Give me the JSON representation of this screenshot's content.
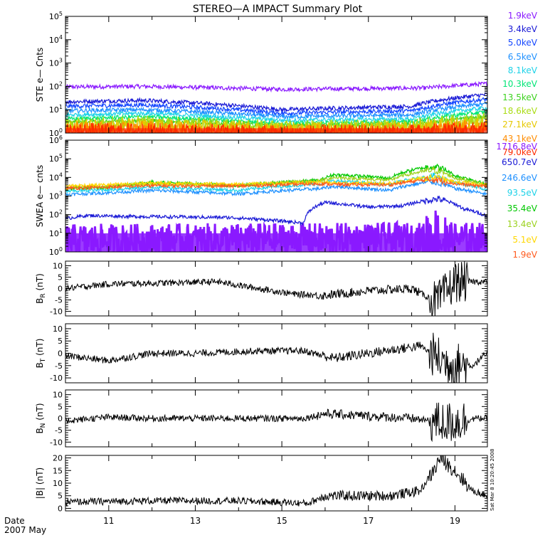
{
  "title": "STEREO—A IMPACT Summary Plot",
  "footer": {
    "date_label": "Date",
    "date_value": "2007 May"
  },
  "side_note": "Sat Mar  8 10:20:45 2008",
  "x_axis": {
    "range": [
      10,
      19.75
    ],
    "ticks": [
      "11",
      "13",
      "15",
      "17",
      "19"
    ],
    "tick_values": [
      11,
      13,
      15,
      17,
      19
    ]
  },
  "chart_data": [
    {
      "id": "ste",
      "type": "line",
      "ylabel": "STE e— Cnts",
      "yscale": "log",
      "ylim": [
        1,
        100000
      ],
      "yticks_exp": [
        "0",
        "1",
        "2",
        "3",
        "4",
        "5"
      ],
      "series": [
        {
          "name": "1.9keV",
          "color": "#8a1aff",
          "levels": [
            {
              "x": 10,
              "y": 95
            },
            {
              "x": 11.8,
              "y": 100
            },
            {
              "x": 15,
              "y": 75
            },
            {
              "x": 18.3,
              "y": 85
            },
            {
              "x": 19.75,
              "y": 130
            }
          ]
        },
        {
          "name": "3.4keV",
          "color": "#1a1ad6",
          "levels": [
            {
              "x": 10,
              "y": 22
            },
            {
              "x": 11.8,
              "y": 25
            },
            {
              "x": 15,
              "y": 10
            },
            {
              "x": 18,
              "y": 14
            },
            {
              "x": 19.75,
              "y": 45
            }
          ]
        },
        {
          "name": "5.0keV",
          "color": "#1447ff",
          "levels": [
            {
              "x": 10,
              "y": 14
            },
            {
              "x": 11.8,
              "y": 16
            },
            {
              "x": 15,
              "y": 7
            },
            {
              "x": 18,
              "y": 9
            },
            {
              "x": 19.75,
              "y": 28
            }
          ]
        },
        {
          "name": "6.5keV",
          "color": "#1e90ff",
          "levels": [
            {
              "x": 10,
              "y": 9
            },
            {
              "x": 11.8,
              "y": 10
            },
            {
              "x": 15,
              "y": 5
            },
            {
              "x": 18,
              "y": 6
            },
            {
              "x": 19.75,
              "y": 18
            }
          ]
        },
        {
          "name": "8.1keV",
          "color": "#1ed2e8",
          "levels": [
            {
              "x": 10,
              "y": 6
            },
            {
              "x": 11.8,
              "y": 7
            },
            {
              "x": 15,
              "y": 3.5
            },
            {
              "x": 18,
              "y": 4
            },
            {
              "x": 19.75,
              "y": 12
            }
          ]
        },
        {
          "name": "10.3keV",
          "color": "#00e676",
          "levels": [
            {
              "x": 10,
              "y": 4
            },
            {
              "x": 11.8,
              "y": 5
            },
            {
              "x": 15,
              "y": 2.5
            },
            {
              "x": 18,
              "y": 3
            },
            {
              "x": 19.75,
              "y": 8
            }
          ]
        },
        {
          "name": "13.5keV",
          "color": "#3cd21e",
          "levels": [
            {
              "x": 10,
              "y": 3
            },
            {
              "x": 11.8,
              "y": 3.5
            },
            {
              "x": 15,
              "y": 2
            },
            {
              "x": 18,
              "y": 2.3
            },
            {
              "x": 19.75,
              "y": 5
            }
          ]
        },
        {
          "name": "18.6keV",
          "color": "#aadc14",
          "levels": [
            {
              "x": 10,
              "y": 2.2
            },
            {
              "x": 11.8,
              "y": 2.5
            },
            {
              "x": 15,
              "y": 1.6
            },
            {
              "x": 18,
              "y": 1.8
            },
            {
              "x": 19.75,
              "y": 3.5
            }
          ]
        },
        {
          "name": "27.1keV",
          "color": "#e6c800",
          "levels": [
            {
              "x": 10,
              "y": 1.7
            },
            {
              "x": 11.8,
              "y": 2
            },
            {
              "x": 15,
              "y": 1.3
            },
            {
              "x": 18,
              "y": 1.5
            },
            {
              "x": 19.75,
              "y": 2.5
            }
          ]
        },
        {
          "name": "43.1keV",
          "color": "#ff8c00",
          "levels": [
            {
              "x": 10,
              "y": 1.4
            },
            {
              "x": 11.8,
              "y": 1.5
            },
            {
              "x": 15,
              "y": 1.1
            },
            {
              "x": 18,
              "y": 1.2
            },
            {
              "x": 19.75,
              "y": 1.8
            }
          ]
        },
        {
          "name": "79.0keV",
          "color": "#ff2a00",
          "levels": [
            {
              "x": 10,
              "y": 1.2
            },
            {
              "x": 11.8,
              "y": 1.25
            },
            {
              "x": 15,
              "y": 1.0
            },
            {
              "x": 18,
              "y": 1.05
            },
            {
              "x": 19.75,
              "y": 1.4
            }
          ]
        }
      ]
    },
    {
      "id": "swea",
      "type": "line",
      "ylabel": "SWEA e— cnts",
      "yscale": "log",
      "ylim": [
        1,
        1000000
      ],
      "yticks_exp": [
        "0",
        "1",
        "2",
        "3",
        "4",
        "5",
        "6"
      ],
      "series": [
        {
          "name": "1716.8eV",
          "color": "#8a1aff",
          "levels": [
            {
              "x": 10,
              "y": 4
            },
            {
              "x": 19.75,
              "y": 5
            }
          ]
        },
        {
          "name": "650.7eV",
          "color": "#1a1ad6",
          "levels": [
            {
              "x": 10,
              "y": 60
            },
            {
              "x": 10.5,
              "y": 90
            },
            {
              "x": 11.5,
              "y": 80
            },
            {
              "x": 13.8,
              "y": 70
            },
            {
              "x": 15.5,
              "y": 35
            },
            {
              "x": 16,
              "y": 450
            },
            {
              "x": 17,
              "y": 250
            },
            {
              "x": 17.8,
              "y": 300
            },
            {
              "x": 18.6,
              "y": 700
            },
            {
              "x": 19.2,
              "y": 200
            },
            {
              "x": 19.75,
              "y": 80
            }
          ]
        },
        {
          "name": "246.6eV",
          "color": "#1e90ff",
          "levels": [
            {
              "x": 10,
              "y": 1200
            },
            {
              "x": 11,
              "y": 1500
            },
            {
              "x": 12,
              "y": 2000
            },
            {
              "x": 14,
              "y": 1300
            },
            {
              "x": 15.9,
              "y": 2500
            },
            {
              "x": 16.2,
              "y": 3200
            },
            {
              "x": 17.5,
              "y": 2000
            },
            {
              "x": 18.5,
              "y": 6000
            },
            {
              "x": 19,
              "y": 2500
            },
            {
              "x": 19.75,
              "y": 1200
            }
          ]
        },
        {
          "name": "93.5eV",
          "color": "#1ed2e8",
          "levels": [
            {
              "x": 10,
              "y": 1800
            },
            {
              "x": 11,
              "y": 2200
            },
            {
              "x": 12,
              "y": 3000
            },
            {
              "x": 14,
              "y": 2000
            },
            {
              "x": 15.9,
              "y": 4500
            },
            {
              "x": 16.2,
              "y": 6500
            },
            {
              "x": 17.5,
              "y": 4000
            },
            {
              "x": 18.5,
              "y": 12000
            },
            {
              "x": 19,
              "y": 5000
            },
            {
              "x": 19.75,
              "y": 2000
            }
          ]
        },
        {
          "name": "35.4eV",
          "color": "#00c800",
          "levels": [
            {
              "x": 10,
              "y": 2500
            },
            {
              "x": 11,
              "y": 3000
            },
            {
              "x": 12,
              "y": 5500
            },
            {
              "x": 14,
              "y": 3500
            },
            {
              "x": 15.9,
              "y": 7000
            },
            {
              "x": 16.2,
              "y": 14000
            },
            {
              "x": 17.5,
              "y": 9000
            },
            {
              "x": 18.5,
              "y": 40000
            },
            {
              "x": 19,
              "y": 12000
            },
            {
              "x": 19.75,
              "y": 3500
            }
          ]
        },
        {
          "name": "13.4eV",
          "color": "#9bd21e",
          "levels": [
            {
              "x": 10,
              "y": 2800
            },
            {
              "x": 11,
              "y": 3200
            },
            {
              "x": 12,
              "y": 4500
            },
            {
              "x": 14,
              "y": 3800
            },
            {
              "x": 15.9,
              "y": 6500
            },
            {
              "x": 16.2,
              "y": 10000
            },
            {
              "x": 17.5,
              "y": 7000
            },
            {
              "x": 18.5,
              "y": 25000
            },
            {
              "x": 19,
              "y": 9000
            },
            {
              "x": 19.75,
              "y": 3500
            }
          ]
        },
        {
          "name": "5.1eV",
          "color": "#ffd700",
          "levels": [
            {
              "x": 10,
              "y": 3500
            },
            {
              "x": 11,
              "y": 4000
            },
            {
              "x": 12,
              "y": 5000
            },
            {
              "x": 14,
              "y": 4200
            },
            {
              "x": 15.9,
              "y": 5500
            },
            {
              "x": 16.2,
              "y": 5000
            },
            {
              "x": 17.5,
              "y": 4800
            },
            {
              "x": 18.5,
              "y": 10000
            },
            {
              "x": 19,
              "y": 5500
            },
            {
              "x": 19.75,
              "y": 4000
            }
          ]
        },
        {
          "name": "1.9eV",
          "color": "#ff5a1e",
          "levels": [
            {
              "x": 10,
              "y": 2600
            },
            {
              "x": 11,
              "y": 3000
            },
            {
              "x": 12,
              "y": 3600
            },
            {
              "x": 14,
              "y": 3400
            },
            {
              "x": 15.9,
              "y": 4600
            },
            {
              "x": 16.2,
              "y": 4200
            },
            {
              "x": 17.5,
              "y": 4000
            },
            {
              "x": 18.5,
              "y": 8000
            },
            {
              "x": 19,
              "y": 4500
            },
            {
              "x": 19.75,
              "y": 3200
            }
          ]
        }
      ]
    },
    {
      "id": "br",
      "type": "line",
      "ylabel": "B",
      "ysub": "R",
      "yunit": "(nT)",
      "ylim": [
        -12,
        12
      ],
      "yticks": [
        "10",
        "5",
        "0",
        "-5",
        "-10"
      ],
      "ytick_values": [
        10,
        5,
        0,
        -5,
        -10
      ],
      "series": [
        {
          "color": "#000000",
          "levels": [
            {
              "x": 10,
              "y": 0
            },
            {
              "x": 11,
              "y": 2
            },
            {
              "x": 12.5,
              "y": 2.5
            },
            {
              "x": 13.5,
              "y": 3
            },
            {
              "x": 14.3,
              "y": 0.5
            },
            {
              "x": 15.3,
              "y": -2.5
            },
            {
              "x": 16,
              "y": -3
            },
            {
              "x": 17,
              "y": -1
            },
            {
              "x": 18,
              "y": 0
            },
            {
              "x": 18.6,
              "y": -6
            },
            {
              "x": 19,
              "y": 3
            },
            {
              "x": 19.75,
              "y": 3
            }
          ]
        }
      ]
    },
    {
      "id": "bt",
      "type": "line",
      "ylabel": "B",
      "ysub": "T",
      "yunit": "(nT)",
      "ylim": [
        -12,
        12
      ],
      "yticks": [
        "10",
        "5",
        "0",
        "-5",
        "-10"
      ],
      "ytick_values": [
        10,
        5,
        0,
        -5,
        -10
      ],
      "series": [
        {
          "color": "#000000",
          "levels": [
            {
              "x": 10,
              "y": -1
            },
            {
              "x": 11,
              "y": -3
            },
            {
              "x": 12,
              "y": 0
            },
            {
              "x": 13,
              "y": 0
            },
            {
              "x": 14.5,
              "y": 1
            },
            {
              "x": 15.5,
              "y": 1
            },
            {
              "x": 16.2,
              "y": -2
            },
            {
              "x": 17,
              "y": 0
            },
            {
              "x": 18.2,
              "y": 3
            },
            {
              "x": 18.8,
              "y": -4
            },
            {
              "x": 19.4,
              "y": -5
            },
            {
              "x": 19.75,
              "y": 0
            }
          ]
        }
      ]
    },
    {
      "id": "bn",
      "type": "line",
      "ylabel": "B",
      "ysub": "N",
      "yunit": "(nT)",
      "ylim": [
        -12,
        12
      ],
      "yticks": [
        "10",
        "5",
        "0",
        "-5",
        "-10"
      ],
      "ytick_values": [
        10,
        5,
        0,
        -5,
        -10
      ],
      "series": [
        {
          "color": "#000000",
          "levels": [
            {
              "x": 10,
              "y": -1
            },
            {
              "x": 11,
              "y": 0.5
            },
            {
              "x": 12,
              "y": 0
            },
            {
              "x": 14,
              "y": 0
            },
            {
              "x": 15.5,
              "y": 0
            },
            {
              "x": 16,
              "y": 2
            },
            {
              "x": 17,
              "y": 1
            },
            {
              "x": 18,
              "y": 0
            },
            {
              "x": 18.8,
              "y": -2
            },
            {
              "x": 19.5,
              "y": 0
            },
            {
              "x": 19.75,
              "y": 0
            }
          ]
        }
      ]
    },
    {
      "id": "bmag",
      "type": "line",
      "ylabel": "|B|",
      "yunit": "(nT)",
      "ylim": [
        -1,
        21
      ],
      "yticks": [
        "20",
        "15",
        "10",
        "5",
        "0"
      ],
      "ytick_values": [
        20,
        15,
        10,
        5,
        0
      ],
      "series": [
        {
          "color": "#000000",
          "levels": [
            {
              "x": 10,
              "y": 2.5
            },
            {
              "x": 12,
              "y": 3
            },
            {
              "x": 14,
              "y": 3
            },
            {
              "x": 15.6,
              "y": 2
            },
            {
              "x": 16,
              "y": 5
            },
            {
              "x": 17.5,
              "y": 5
            },
            {
              "x": 18.2,
              "y": 7
            },
            {
              "x": 18.55,
              "y": 16
            },
            {
              "x": 18.65,
              "y": 20
            },
            {
              "x": 19,
              "y": 15
            },
            {
              "x": 19.4,
              "y": 7
            },
            {
              "x": 19.75,
              "y": 5
            }
          ]
        }
      ]
    }
  ]
}
